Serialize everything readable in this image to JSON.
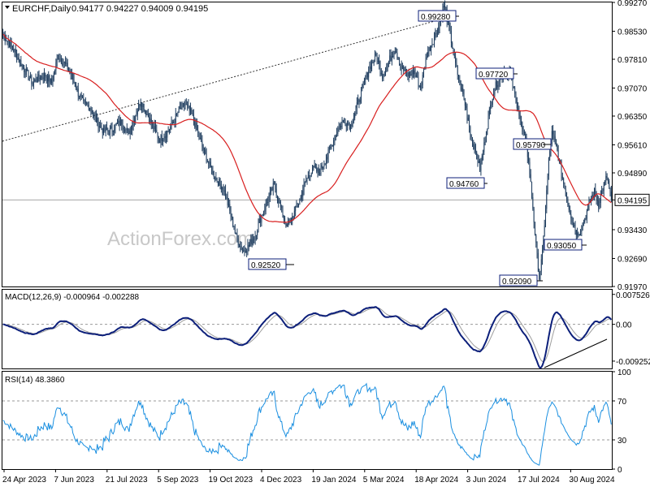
{
  "header": {
    "symbol": "EURCHF,Daily",
    "ohlc": "0.94177 0.94227 0.94009 0.94195"
  },
  "watermark": "ActionForex.com",
  "colors": {
    "candle": "#1b3a5c",
    "ma": "#d81e1e",
    "macd": "#0c1f7a",
    "signal": "#9e9e9e",
    "rsi": "#1a8fe0",
    "frame": "#000000",
    "label_box": "#0c1f7a"
  },
  "chart_data": [
    {
      "type": "candlestick",
      "pane": "price",
      "ylim": [
        0.9197,
        0.9927
      ],
      "yticks": [
        "0.99270",
        "0.98530",
        "0.97810",
        "0.97070",
        "0.96350",
        "0.95610",
        "0.94890",
        "0.94195",
        "0.93430",
        "0.92690",
        "0.91970"
      ],
      "current_price": "0.94195",
      "x_labels": [
        "24 Apr 2023",
        "7 Jun 2023",
        "21 Jul 2023",
        "5 Sep 2023",
        "19 Oct 2023",
        "4 Dec 2023",
        "19 Jan 2024",
        "5 Mar 2024",
        "18 Apr 2024",
        "3 Jun 2024",
        "17 Jul 2024",
        "30 Aug 2024"
      ],
      "anchors": [
        [
          0,
          0.9845
        ],
        [
          10,
          0.9805
        ],
        [
          20,
          0.9755
        ],
        [
          28,
          0.972
        ],
        [
          34,
          0.9735
        ],
        [
          40,
          0.974
        ],
        [
          46,
          0.972
        ],
        [
          52,
          0.979
        ],
        [
          58,
          0.977
        ],
        [
          64,
          0.9745
        ],
        [
          70,
          0.97
        ],
        [
          76,
          0.9665
        ],
        [
          82,
          0.966
        ],
        [
          88,
          0.9625
        ],
        [
          94,
          0.96
        ],
        [
          100,
          0.9595
        ],
        [
          106,
          0.961
        ],
        [
          112,
          0.962
        ],
        [
          118,
          0.959
        ],
        [
          124,
          0.963
        ],
        [
          130,
          0.9675
        ],
        [
          136,
          0.964
        ],
        [
          142,
          0.9605
        ],
        [
          148,
          0.9575
        ],
        [
          154,
          0.959
        ],
        [
          160,
          0.9615
        ],
        [
          166,
          0.965
        ],
        [
          172,
          0.9665
        ],
        [
          178,
          0.964
        ],
        [
          184,
          0.959
        ],
        [
          190,
          0.954
        ],
        [
          196,
          0.95
        ],
        [
          202,
          0.947
        ],
        [
          208,
          0.945
        ],
        [
          214,
          0.939
        ],
        [
          220,
          0.9325
        ],
        [
          226,
          0.929
        ],
        [
          232,
          0.93
        ],
        [
          238,
          0.933
        ],
        [
          244,
          0.938
        ],
        [
          250,
          0.942
        ],
        [
          256,
          0.946
        ],
        [
          262,
          0.94
        ],
        [
          268,
          0.935
        ],
        [
          274,
          0.938
        ],
        [
          280,
          0.942
        ],
        [
          286,
          0.947
        ],
        [
          292,
          0.95
        ],
        [
          298,
          0.949
        ],
        [
          304,
          0.952
        ],
        [
          310,
          0.956
        ],
        [
          316,
          0.96
        ],
        [
          322,
          0.9625
        ],
        [
          328,
          0.961
        ],
        [
          334,
          0.966
        ],
        [
          340,
          0.9715
        ],
        [
          346,
          0.976
        ],
        [
          352,
          0.979
        ],
        [
          358,
          0.974
        ],
        [
          364,
          0.9775
        ],
        [
          370,
          0.981
        ],
        [
          376,
          0.976
        ],
        [
          382,
          0.974
        ],
        [
          388,
          0.975
        ],
        [
          394,
          0.9705
        ],
        [
          400,
          0.9795
        ],
        [
          406,
          0.983
        ],
        [
          412,
          0.987
        ],
        [
          416,
          0.992
        ],
        [
          418,
          0.99
        ],
        [
          422,
          0.9845
        ],
        [
          426,
          0.978
        ],
        [
          430,
          0.973
        ],
        [
          434,
          0.969
        ],
        [
          438,
          0.964
        ],
        [
          442,
          0.958
        ],
        [
          446,
          0.954
        ],
        [
          450,
          0.95
        ],
        [
          454,
          0.956
        ],
        [
          458,
          0.963
        ],
        [
          462,
          0.969
        ],
        [
          466,
          0.972
        ],
        [
          470,
          0.974
        ],
        [
          474,
          0.9755
        ],
        [
          478,
          0.9745
        ],
        [
          482,
          0.97
        ],
        [
          486,
          0.9655
        ],
        [
          490,
          0.96
        ],
        [
          494,
          0.956
        ],
        [
          497,
          0.949
        ],
        [
          500,
          0.94
        ],
        [
          503,
          0.93
        ],
        [
          506,
          0.922
        ],
        [
          509,
          0.928
        ],
        [
          512,
          0.94
        ],
        [
          515,
          0.952
        ],
        [
          518,
          0.959
        ],
        [
          522,
          0.956
        ],
        [
          526,
          0.95
        ],
        [
          530,
          0.945
        ],
        [
          534,
          0.94
        ],
        [
          538,
          0.936
        ],
        [
          542,
          0.933
        ],
        [
          546,
          0.935
        ],
        [
          550,
          0.938
        ],
        [
          554,
          0.942
        ],
        [
          558,
          0.944
        ],
        [
          562,
          0.941
        ],
        [
          566,
          0.945
        ],
        [
          570,
          0.948
        ],
        [
          574,
          0.942
        ]
      ]
    },
    {
      "type": "line",
      "pane": "macd",
      "label": "MACD(12,26,9) -0.000964 -0.002288",
      "yticks": [
        "0.007526",
        "0.00",
        "-0.009252"
      ],
      "ylim": [
        -0.0111,
        0.0087
      ]
    },
    {
      "type": "line",
      "pane": "rsi",
      "label": "RSI(14) 48.3860",
      "yticks": [
        "100",
        "70",
        "30",
        "0"
      ],
      "ylim": [
        0,
        100
      ],
      "levels": [
        70,
        30
      ]
    }
  ],
  "price_labels": [
    {
      "text": "0.99280"
    },
    {
      "text": "0.97720"
    },
    {
      "text": "0.95790"
    },
    {
      "text": "0.94760"
    },
    {
      "text": "0.93050"
    },
    {
      "text": "0.92520"
    },
    {
      "text": "0.92090"
    }
  ]
}
